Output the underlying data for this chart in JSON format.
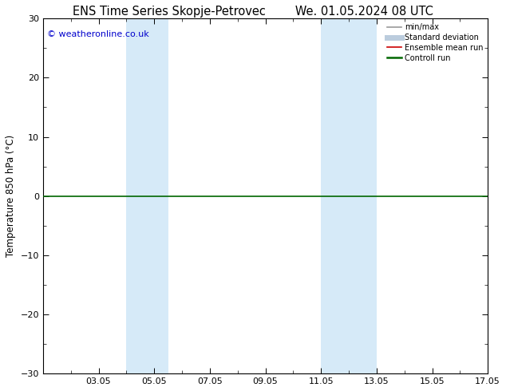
{
  "title_left": "ENS Time Series Skopje-Petrovec",
  "title_right": "We. 01.05.2024 08 UTC",
  "ylabel": "Temperature 850 hPa (°C)",
  "ylim": [
    -30,
    30
  ],
  "yticks": [
    -30,
    -20,
    -10,
    0,
    10,
    20,
    30
  ],
  "xlim": [
    1.0,
    17.0
  ],
  "xtick_labels": [
    "03.05",
    "05.05",
    "07.05",
    "09.05",
    "11.05",
    "13.05",
    "15.05",
    "17.05"
  ],
  "xtick_positions": [
    3,
    5,
    7,
    9,
    11,
    13,
    15,
    17
  ],
  "shaded_bands": [
    {
      "x_start": 4.0,
      "x_end": 5.5,
      "color": "#d6eaf8"
    },
    {
      "x_start": 11.0,
      "x_end": 13.0,
      "color": "#d6eaf8"
    }
  ],
  "hline_y": 0,
  "hline_color": "#006600",
  "hline_lw": 1.2,
  "copyright_text": "© weatheronline.co.uk",
  "copyright_color": "#0000cc",
  "legend_items": [
    {
      "label": "min/max",
      "color": "#999999",
      "lw": 1.2
    },
    {
      "label": "Standard deviation",
      "color": "#bbccdd",
      "lw": 5
    },
    {
      "label": "Ensemble mean run",
      "color": "#cc0000",
      "lw": 1.2
    },
    {
      "label": "Controll run",
      "color": "#006600",
      "lw": 1.8
    }
  ],
  "background_color": "#ffffff",
  "plot_bg_color": "#ffffff",
  "title_fontsize": 10.5,
  "tick_fontsize": 8,
  "label_fontsize": 8.5,
  "copyright_fontsize": 8
}
